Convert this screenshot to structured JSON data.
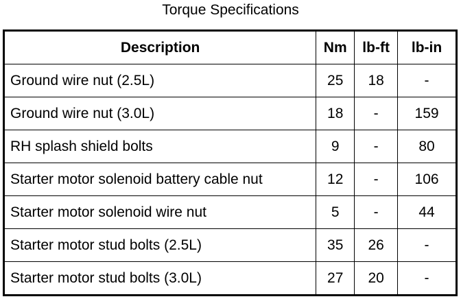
{
  "title": "Torque Specifications",
  "headers": [
    "Description",
    "Nm",
    "lb-ft",
    "lb-in"
  ],
  "rows": [
    [
      "Ground wire nut (2.5L)",
      "25",
      "18",
      "-"
    ],
    [
      "Ground wire nut (3.0L)",
      "18",
      "-",
      "159"
    ],
    [
      "RH splash shield bolts",
      "9",
      "-",
      "80"
    ],
    [
      "Starter motor solenoid battery cable nut",
      "12",
      "-",
      "106"
    ],
    [
      "Starter motor solenoid wire nut",
      "5",
      "-",
      "44"
    ],
    [
      "Starter motor stud bolts (2.5L)",
      "35",
      "26",
      "-"
    ],
    [
      "Starter motor stud bolts (3.0L)",
      "27",
      "20",
      "-"
    ]
  ]
}
